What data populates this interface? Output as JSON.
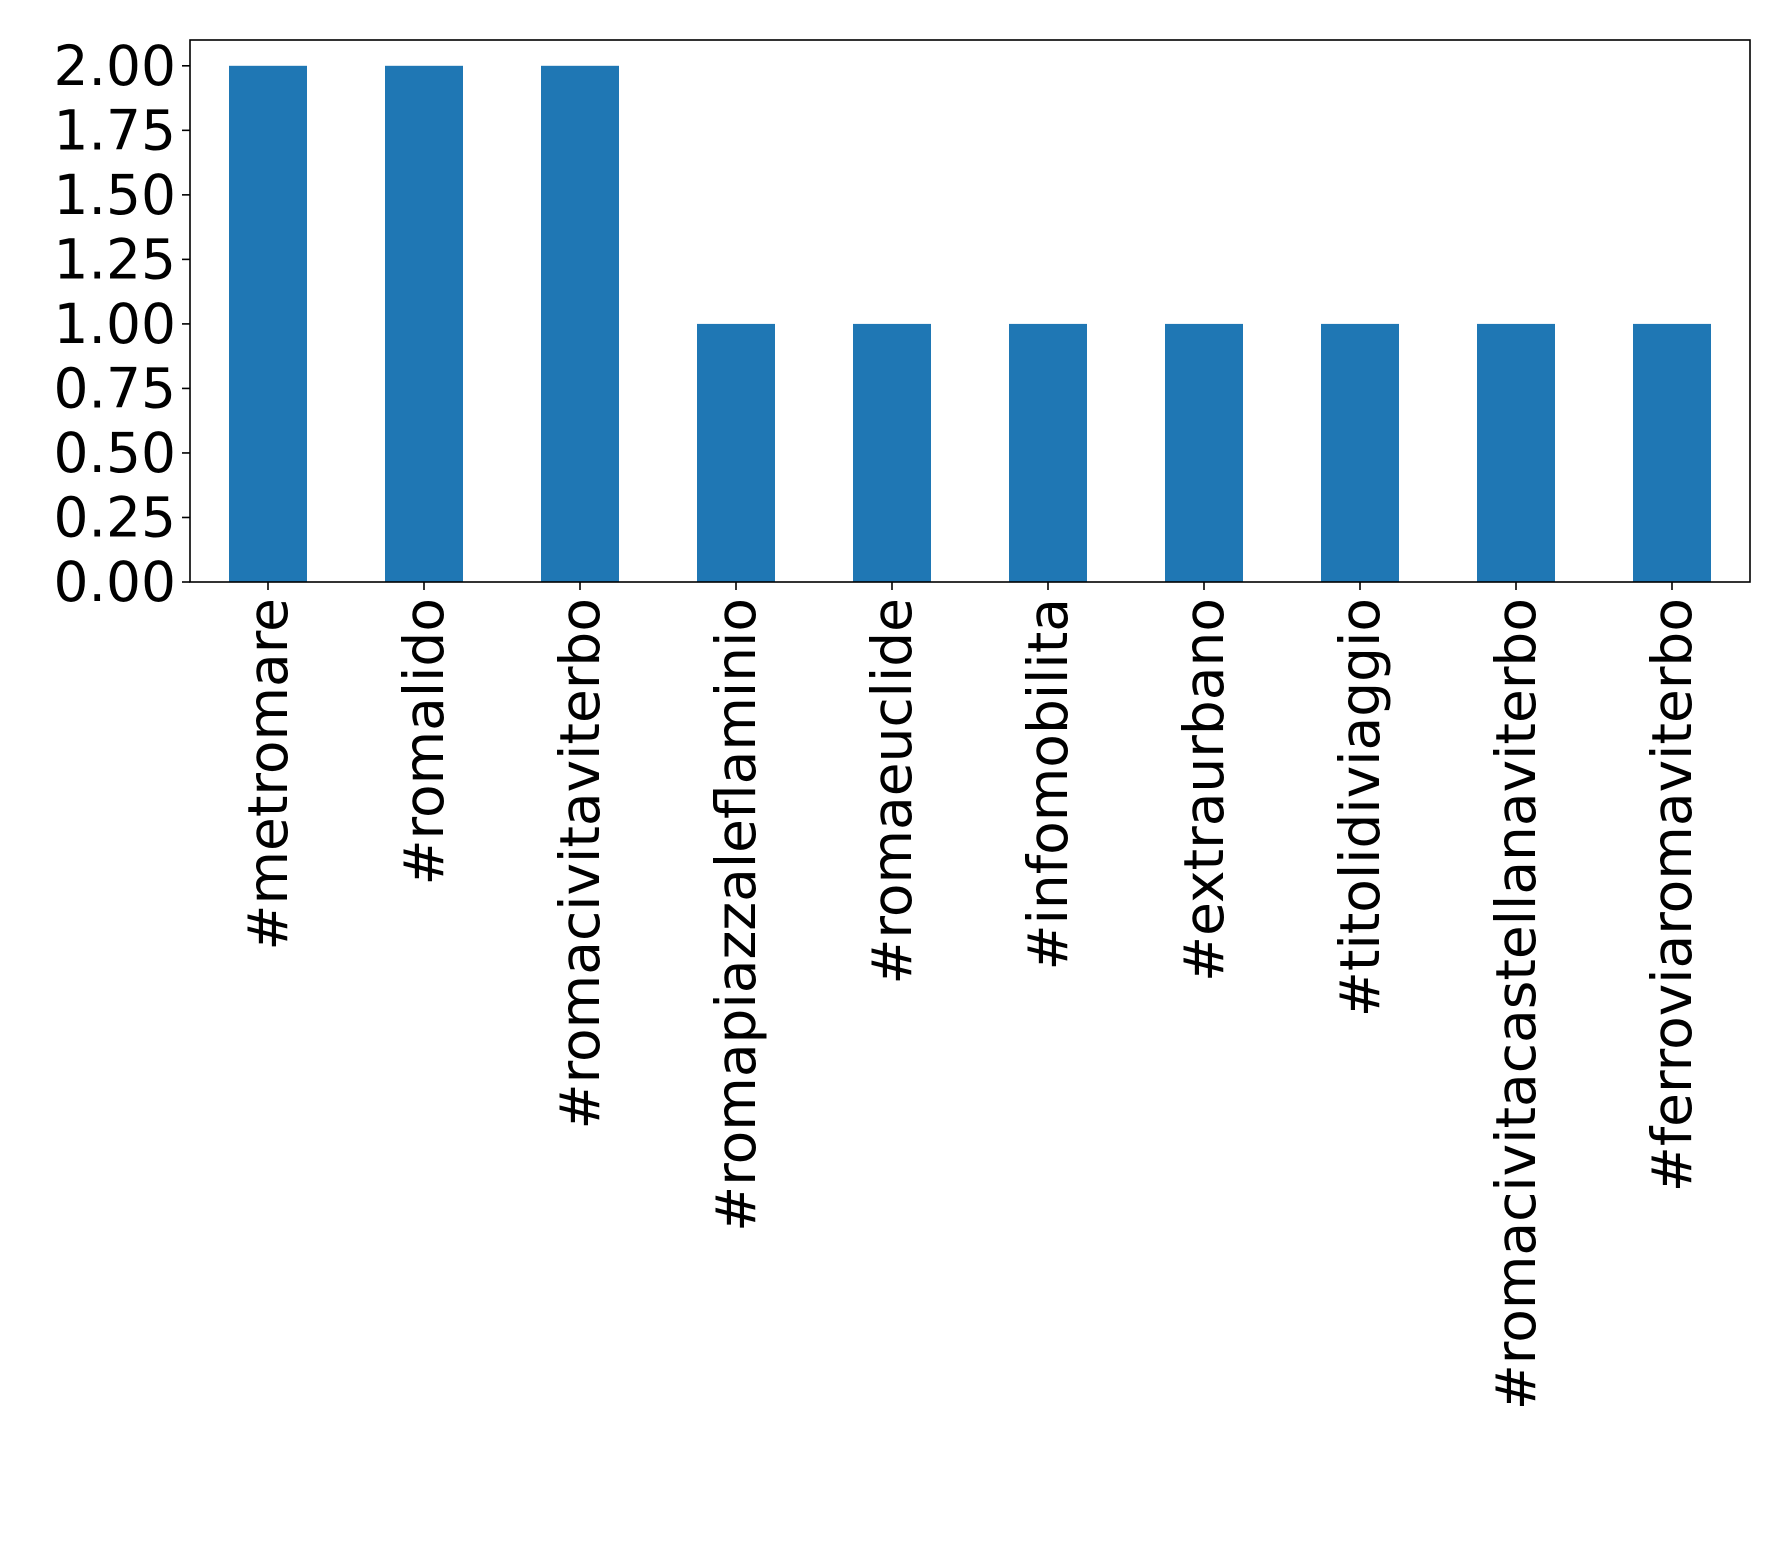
{
  "chart_data": {
    "type": "bar",
    "title": "",
    "xlabel": "",
    "ylabel": "",
    "categories": [
      "#metromare",
      "#romalido",
      "#romacivitaviterbo",
      "#romapiazzaleflaminio",
      "#romaeuclide",
      "#infomobilita",
      "#extraurbano",
      "#titolidiviaggio",
      "#romacivitacastellanaviterbo",
      "#ferroviaromaviterbo"
    ],
    "values": [
      2,
      2,
      2,
      1,
      1,
      1,
      1,
      1,
      1,
      1
    ],
    "ylim": [
      0,
      2.1
    ],
    "yticks": [
      "0.00",
      "0.25",
      "0.50",
      "0.75",
      "1.00",
      "1.25",
      "1.50",
      "1.75",
      "2.00"
    ],
    "ytick_values": [
      0,
      0.25,
      0.5,
      0.75,
      1.0,
      1.25,
      1.5,
      1.75,
      2.0
    ],
    "bar_color": "#1f77b4",
    "grid": false,
    "legend": "none"
  }
}
